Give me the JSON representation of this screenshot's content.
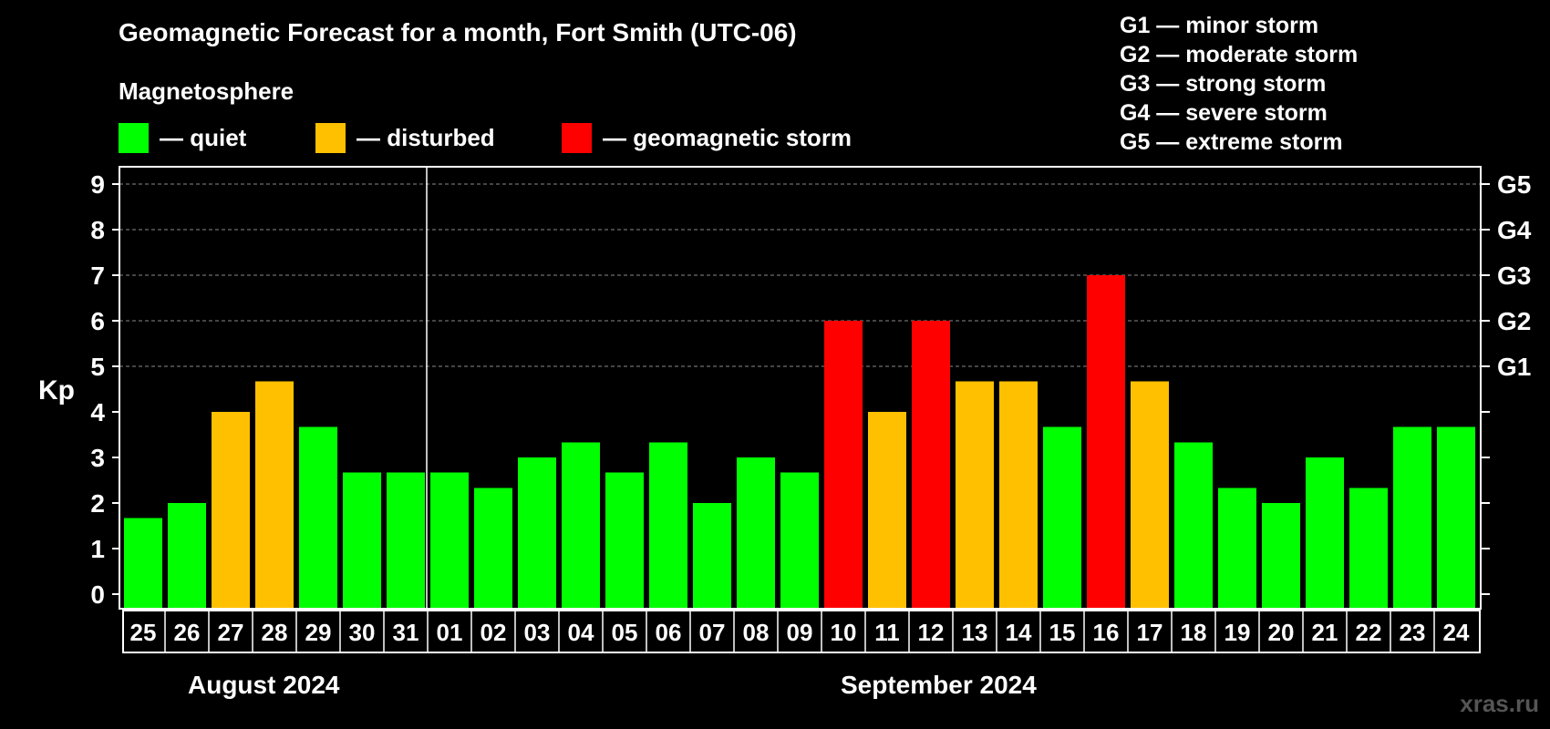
{
  "title": "Geomagnetic Forecast for a month, Fort Smith (UTC-06)",
  "legend": {
    "heading": "Magnetosphere",
    "items": [
      {
        "label": "— quiet",
        "color": "#00ff00"
      },
      {
        "label": "— disturbed",
        "color": "#ffc000"
      },
      {
        "label": "— geomagnetic storm",
        "color": "#ff0000"
      }
    ]
  },
  "g_legend": [
    "G1 — minor storm",
    "G2 — moderate storm",
    "G3 — strong storm",
    "G4 — severe storm",
    "G5 — extreme storm"
  ],
  "months": {
    "first": "August 2024",
    "second": "September 2024"
  },
  "watermark": "xras.ru",
  "chart_data": {
    "type": "bar",
    "title": "Geomagnetic Forecast for a month, Fort Smith (UTC-06)",
    "ylabel": "Kp",
    "ylim": [
      0,
      9
    ],
    "yticks": [
      "0",
      "1",
      "2",
      "3",
      "4",
      "5",
      "6",
      "7",
      "8",
      "9"
    ],
    "g_levels": [
      {
        "kp": 5,
        "label": "G1"
      },
      {
        "kp": 6,
        "label": "G2"
      },
      {
        "kp": 7,
        "label": "G3"
      },
      {
        "kp": 8,
        "label": "G4"
      },
      {
        "kp": 9,
        "label": "G5"
      }
    ],
    "categories": [
      "25",
      "26",
      "27",
      "28",
      "29",
      "30",
      "31",
      "01",
      "02",
      "03",
      "04",
      "05",
      "06",
      "07",
      "08",
      "09",
      "10",
      "11",
      "12",
      "13",
      "14",
      "15",
      "16",
      "17",
      "18",
      "19",
      "20",
      "21",
      "22",
      "23",
      "24"
    ],
    "values": [
      1.67,
      2.0,
      4.0,
      4.67,
      3.67,
      2.67,
      2.67,
      2.67,
      2.33,
      3.0,
      3.33,
      2.67,
      3.33,
      2.0,
      3.0,
      2.67,
      6.0,
      4.0,
      6.0,
      4.67,
      4.67,
      3.67,
      7.0,
      4.67,
      3.33,
      2.33,
      2.0,
      3.0,
      2.33,
      3.67,
      3.67
    ],
    "status": [
      "quiet",
      "quiet",
      "disturbed",
      "disturbed",
      "quiet",
      "quiet",
      "quiet",
      "quiet",
      "quiet",
      "quiet",
      "quiet",
      "quiet",
      "quiet",
      "quiet",
      "quiet",
      "quiet",
      "storm",
      "disturbed",
      "storm",
      "disturbed",
      "disturbed",
      "quiet",
      "storm",
      "disturbed",
      "quiet",
      "quiet",
      "quiet",
      "quiet",
      "quiet",
      "quiet",
      "quiet"
    ],
    "colors": {
      "quiet": "#00ff00",
      "disturbed": "#ffc000",
      "storm": "#ff0000"
    },
    "month_split_after": "31",
    "grid": true
  }
}
